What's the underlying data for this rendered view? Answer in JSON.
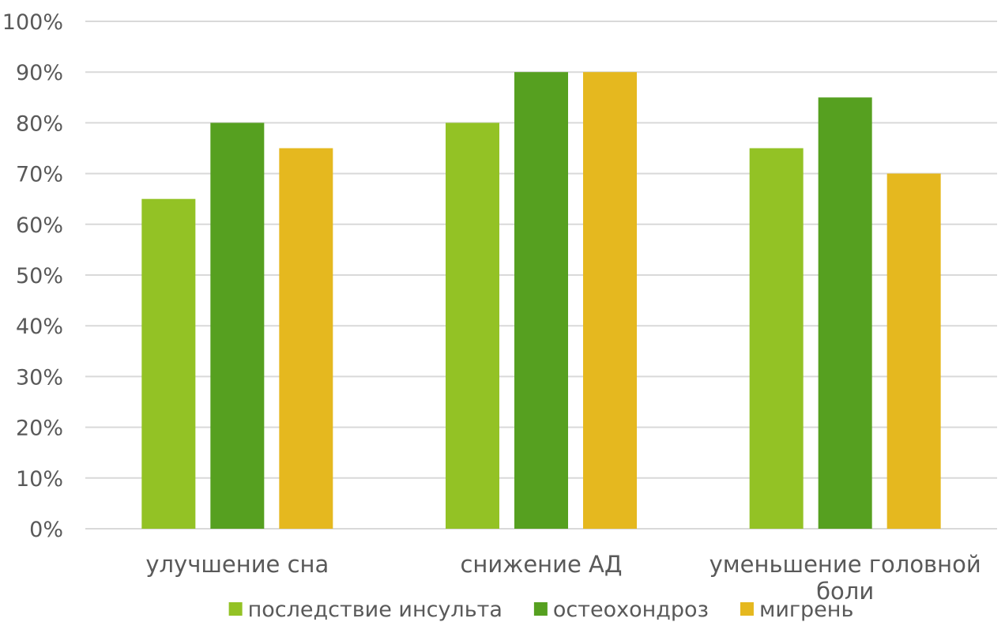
{
  "chart_data": {
    "type": "bar",
    "categories": [
      "улучшение сна",
      "снижение АД",
      "уменьшение головной боли"
    ],
    "series": [
      {
        "name": "последствие инсульта",
        "values": [
          65,
          80,
          75
        ],
        "color": "#93c225"
      },
      {
        "name": "остеохондроз",
        "values": [
          80,
          90,
          85
        ],
        "color": "#56a020"
      },
      {
        "name": "мигрень",
        "values": [
          75,
          90,
          70
        ],
        "color": "#e5b81f"
      }
    ],
    "y_ticks": [
      "0%",
      "10%",
      "20%",
      "30%",
      "40%",
      "50%",
      "60%",
      "70%",
      "80%",
      "90%",
      "100%"
    ],
    "ylim": [
      0,
      100
    ],
    "grid": true,
    "legend_position": "bottom"
  }
}
